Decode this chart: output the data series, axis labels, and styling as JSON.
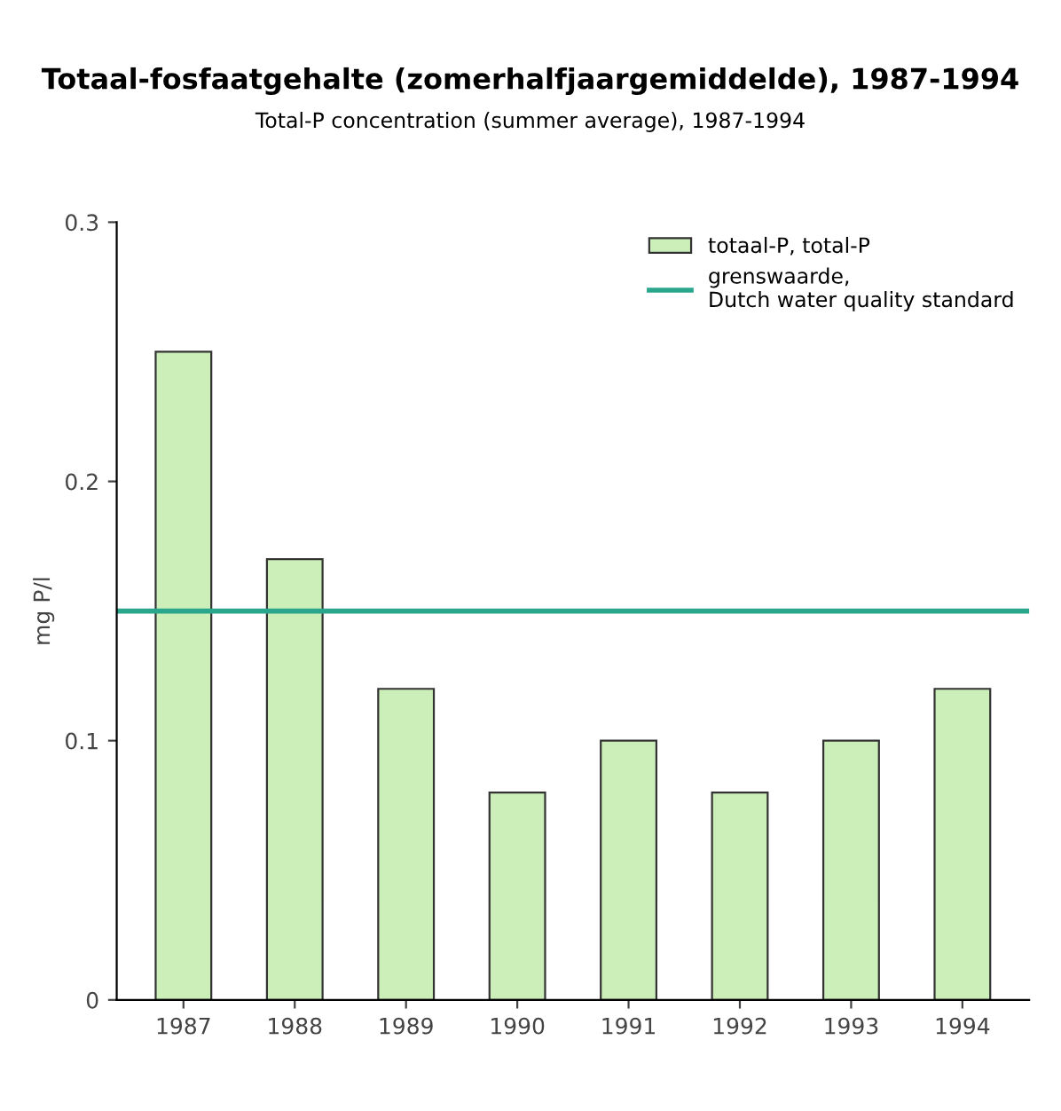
{
  "chart_data": {
    "type": "bar",
    "title": "Totaal-fosfaatgehalte (zomerhalfjaargemiddelde), 1987-1994",
    "subtitle": "Total-P concentration (summer average), 1987-1994",
    "ylabel": "mg P/l",
    "categories": [
      "1987",
      "1988",
      "1989",
      "1990",
      "1991",
      "1992",
      "1993",
      "1994"
    ],
    "series": [
      {
        "name": "totaal-P, total-P",
        "color": "#ccefb9",
        "values": [
          0.25,
          0.17,
          0.12,
          0.08,
          0.1,
          0.08,
          0.1,
          0.12
        ]
      }
    ],
    "ref_lines": [
      {
        "axis": "y",
        "value": 0.15,
        "label": "grenswaarde,\nDutch water quality standard",
        "color": "#2aa68c",
        "line_style": "solid"
      }
    ],
    "ylim": [
      0,
      0.3
    ],
    "yticks": [
      0,
      0.1,
      0.2,
      0.3
    ],
    "grid": false,
    "legend": "top right"
  }
}
